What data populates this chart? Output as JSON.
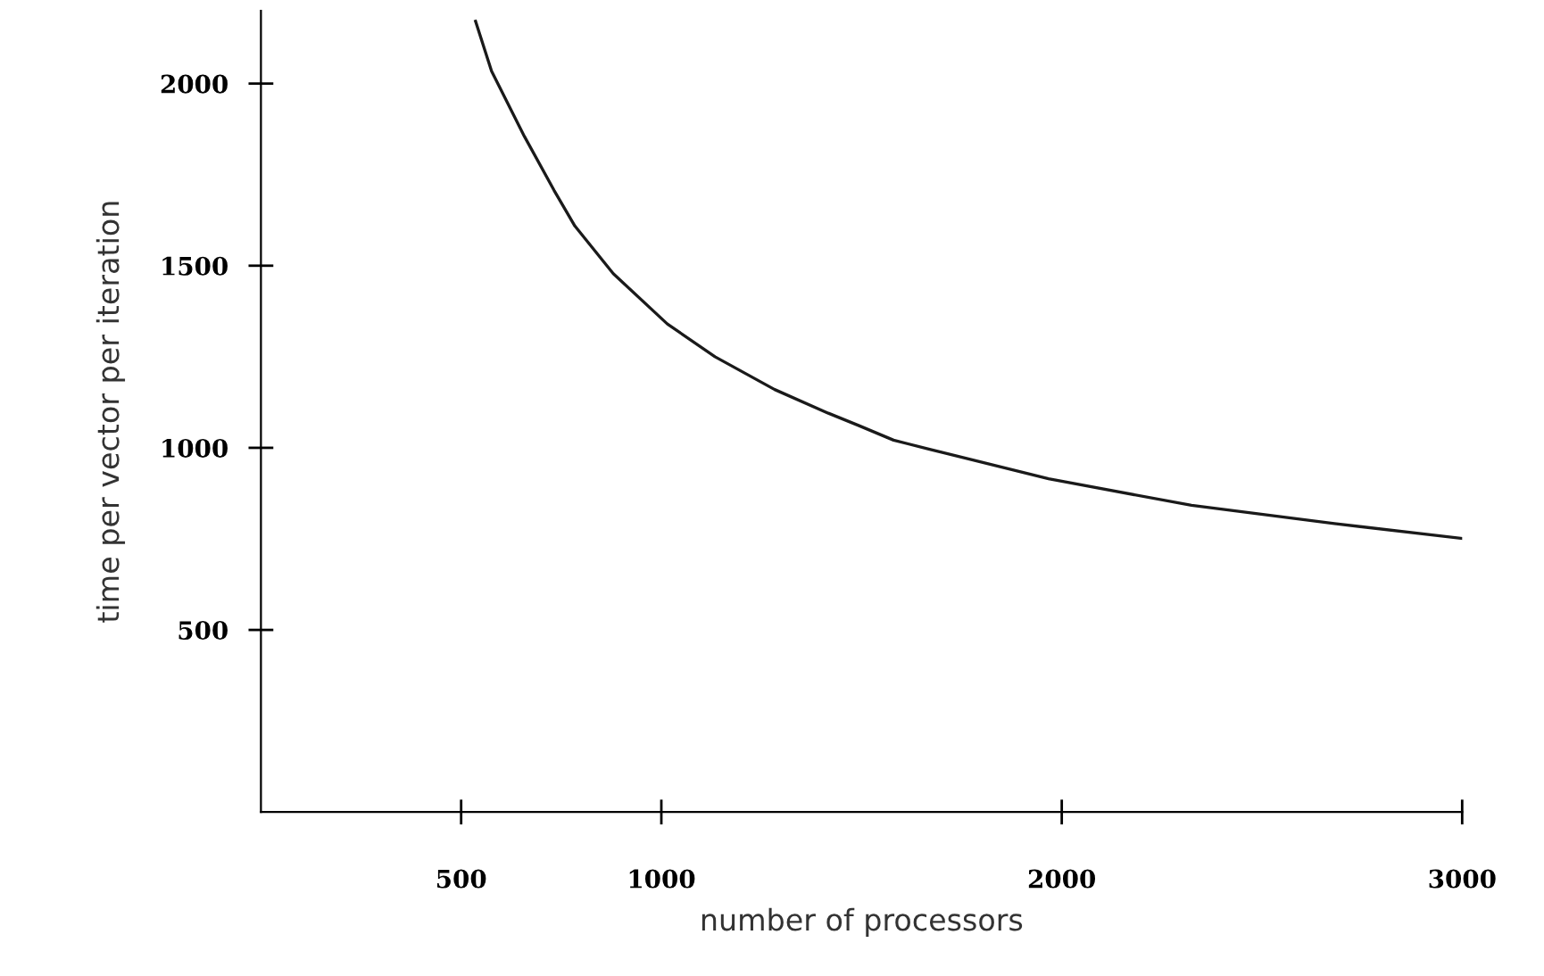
{
  "chart_data": {
    "type": "line",
    "xlabel": "number of processors",
    "ylabel": "time per vector per iteration",
    "series": [
      {
        "color": "#1a1a1a",
        "x": [
          536,
          576,
          658,
          732,
          784,
          880,
          1015,
          1134,
          1283,
          1417,
          1491,
          1580,
          1670,
          1967,
          2324,
          2681,
          3000
        ],
        "values": [
          2171,
          2034,
          1855,
          1707,
          1609,
          1478,
          1340,
          1250,
          1160,
          1095,
          1062,
          1021,
          996,
          915,
          842,
          792,
          751
        ]
      }
    ],
    "xlim": [
      0,
      3000
    ],
    "ylim": [
      0,
      2200
    ],
    "xticks": [
      500,
      1000,
      2000,
      3000
    ],
    "yticks": [
      500,
      1000,
      1500,
      2000
    ],
    "grid": false,
    "legend": false,
    "marker": "none",
    "line_style": "solid"
  }
}
